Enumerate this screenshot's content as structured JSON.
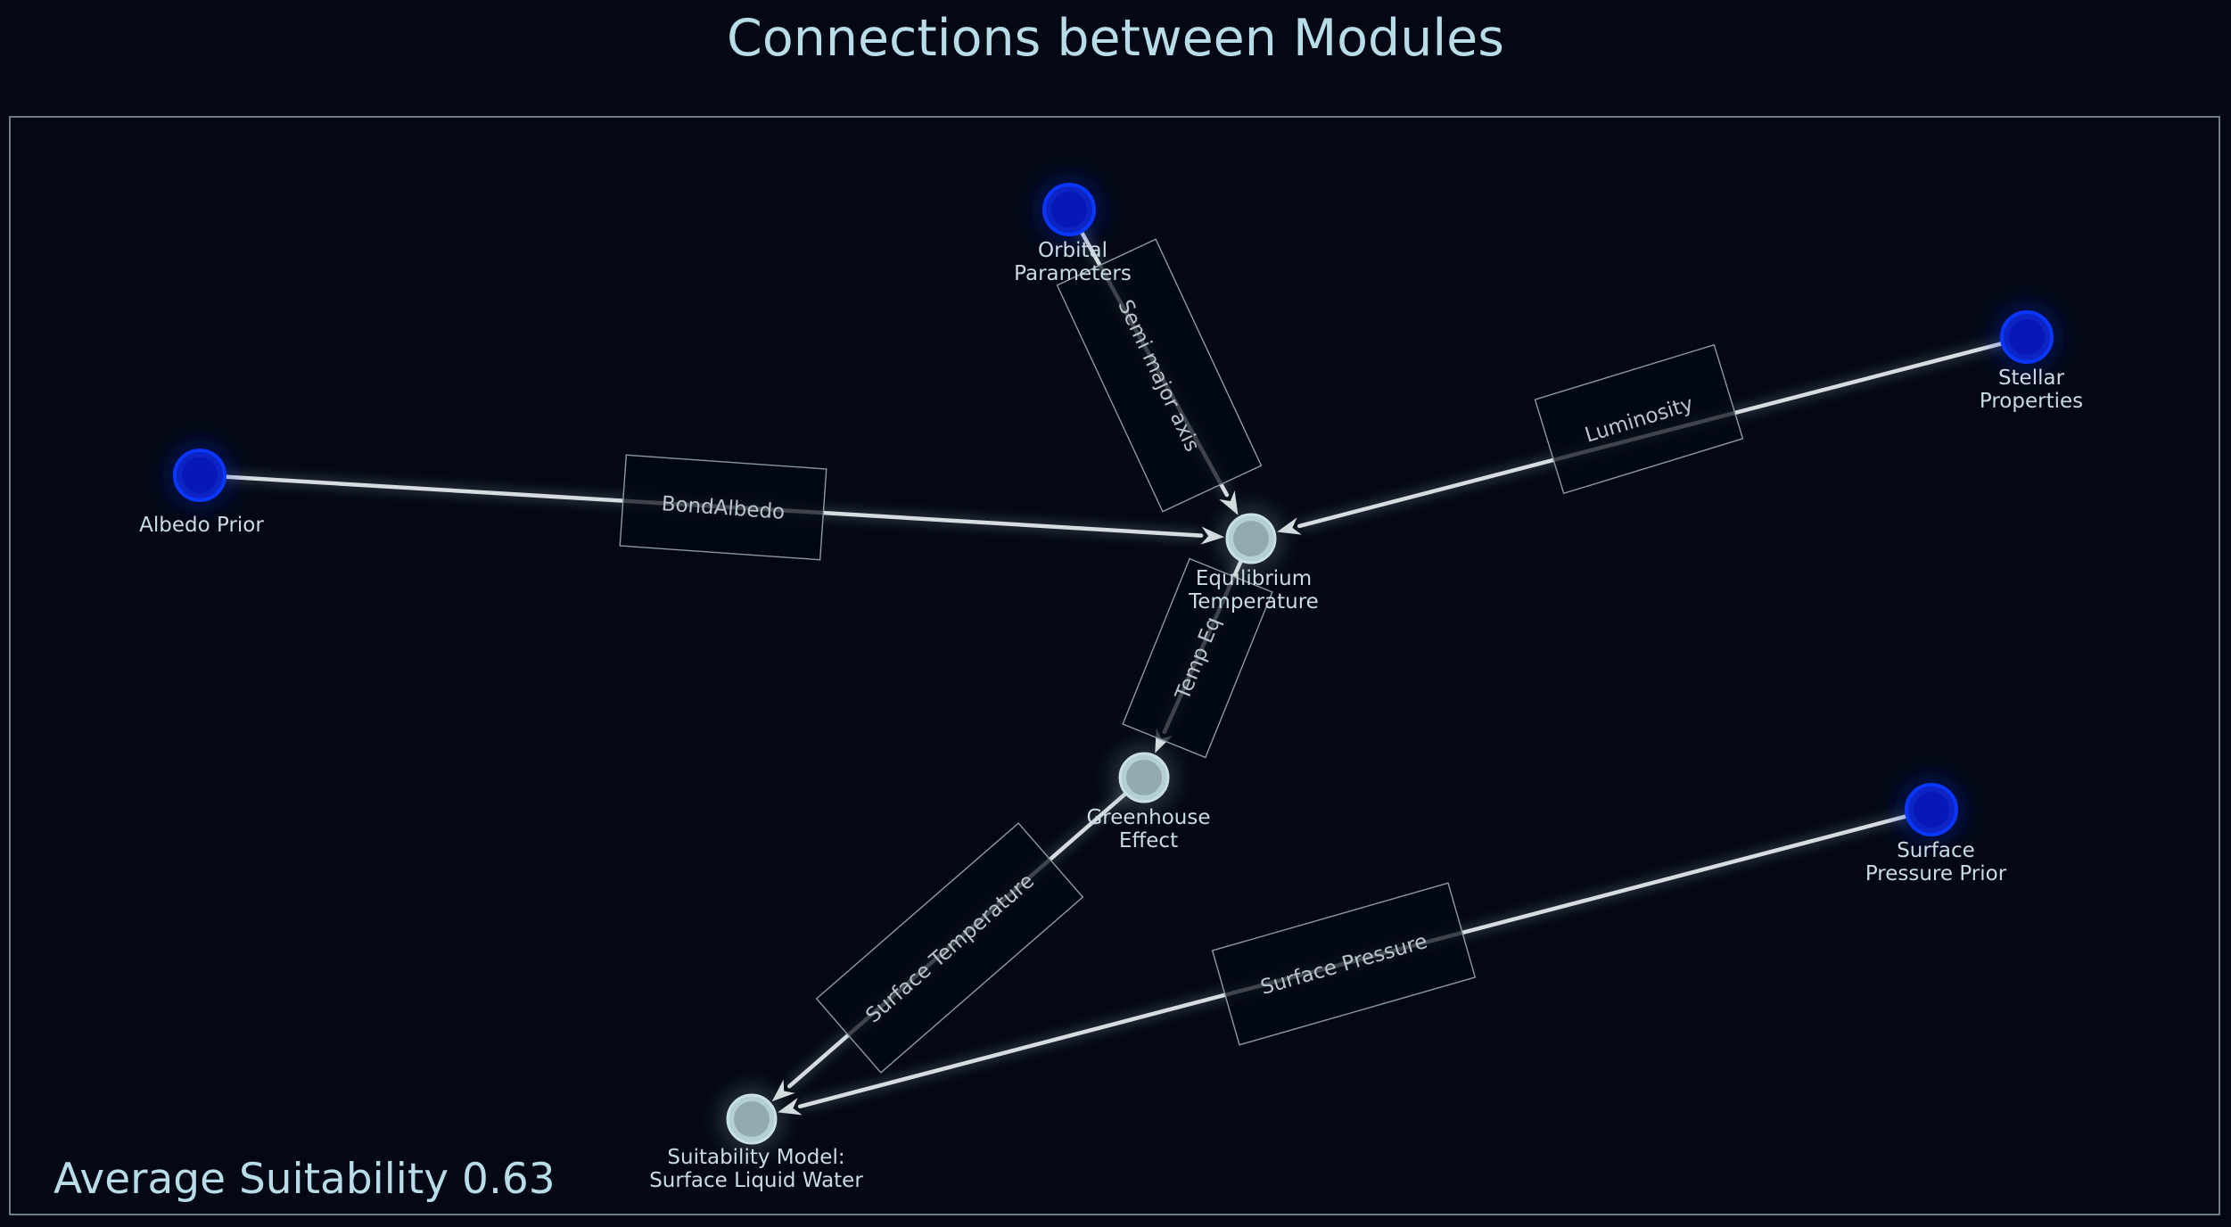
{
  "title": "Connections between Modules",
  "summary": "Average Suitability 0.63",
  "colors": {
    "background": "#030814",
    "frame": "#8fa4ad",
    "title_text": "#b8dce8",
    "input_node": "#0a22d8",
    "computed_node": "#9fb8be",
    "edge": "#d6dcdf",
    "label_box": "#8d999e"
  },
  "nodes": [
    {
      "id": "albedo",
      "lines": [
        "Albedo Prior"
      ],
      "kind": "input"
    },
    {
      "id": "orbital",
      "lines": [
        "Orbital",
        "Parameters"
      ],
      "kind": "input"
    },
    {
      "id": "stellar",
      "lines": [
        "Stellar",
        "Properties"
      ],
      "kind": "input"
    },
    {
      "id": "pressure",
      "lines": [
        "Surface",
        "Pressure Prior"
      ],
      "kind": "input"
    },
    {
      "id": "eqtemp",
      "lines": [
        "Equilibrium",
        "Temperature"
      ],
      "kind": "computed"
    },
    {
      "id": "greenhouse",
      "lines": [
        "Greenhouse",
        "Effect"
      ],
      "kind": "computed"
    },
    {
      "id": "suitability",
      "lines": [
        "Suitability Model:",
        "Surface Liquid Water"
      ],
      "kind": "computed"
    }
  ],
  "edges": [
    {
      "from": "albedo",
      "to": "eqtemp",
      "label": "BondAlbedo"
    },
    {
      "from": "orbital",
      "to": "eqtemp",
      "label": "Semi major axis"
    },
    {
      "from": "stellar",
      "to": "eqtemp",
      "label": "Luminosity"
    },
    {
      "from": "eqtemp",
      "to": "greenhouse",
      "label": "Temp Eq"
    },
    {
      "from": "greenhouse",
      "to": "suitability",
      "label": "Surface Temperature"
    },
    {
      "from": "pressure",
      "to": "suitability",
      "label": "Surface Pressure"
    }
  ]
}
